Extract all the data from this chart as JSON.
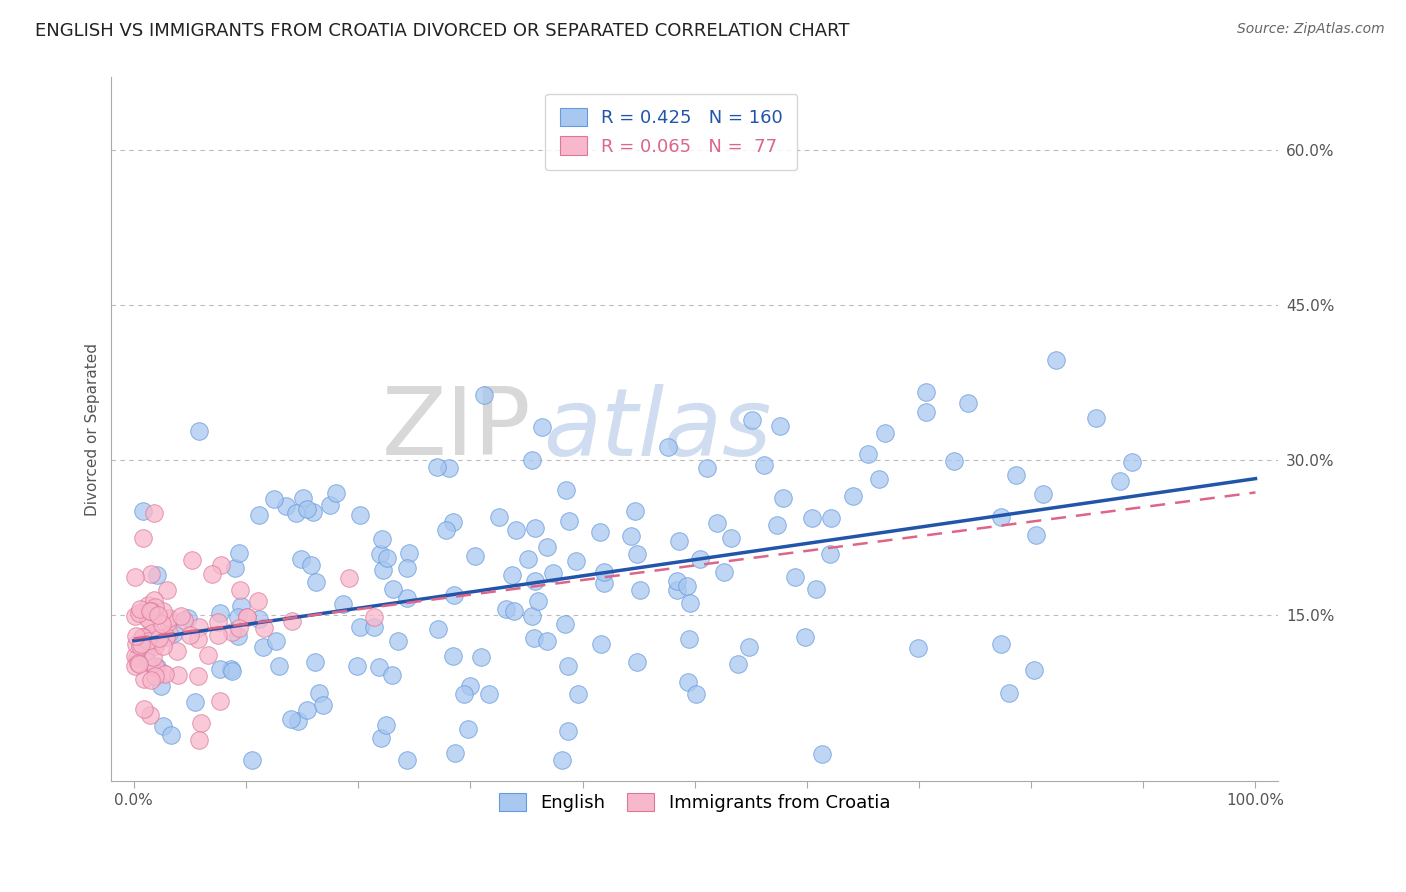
{
  "title": "ENGLISH VS IMMIGRANTS FROM CROATIA DIVORCED OR SEPARATED CORRELATION CHART",
  "source": "Source: ZipAtlas.com",
  "ylabel": "Divorced or Separated",
  "xlabel": "",
  "xlim": [
    -0.02,
    1.02
  ],
  "ylim": [
    -0.01,
    0.67
  ],
  "ytick_vals": [
    0.15,
    0.3,
    0.45,
    0.6
  ],
  "ytick_labels": [
    "15.0%",
    "30.0%",
    "45.0%",
    "60.0%"
  ],
  "xtick_vals": [
    0.0,
    0.1,
    0.2,
    0.3,
    0.4,
    0.5,
    0.6,
    0.7,
    0.8,
    0.9,
    1.0
  ],
  "xtick_labels": [
    "0.0%",
    "",
    "",
    "",
    "",
    "",
    "",
    "",
    "",
    "",
    "100.0%"
  ],
  "english_R": 0.425,
  "english_N": 160,
  "croatia_R": 0.065,
  "croatia_N": 77,
  "legend_labels": [
    "English",
    "Immigrants from Croatia"
  ],
  "blue_fill": "#a8c8f0",
  "blue_edge": "#6699dd",
  "blue_line": "#2255aa",
  "pink_fill": "#f8b8cc",
  "pink_edge": "#dd7799",
  "pink_line": "#dd6688",
  "watermark_zip": "ZIP",
  "watermark_atlas": "atlas",
  "title_fontsize": 13,
  "axis_fontsize": 11,
  "legend_fontsize": 13,
  "source_fontsize": 10,
  "background_color": "#ffffff",
  "grid_color": "#bbbbbb"
}
